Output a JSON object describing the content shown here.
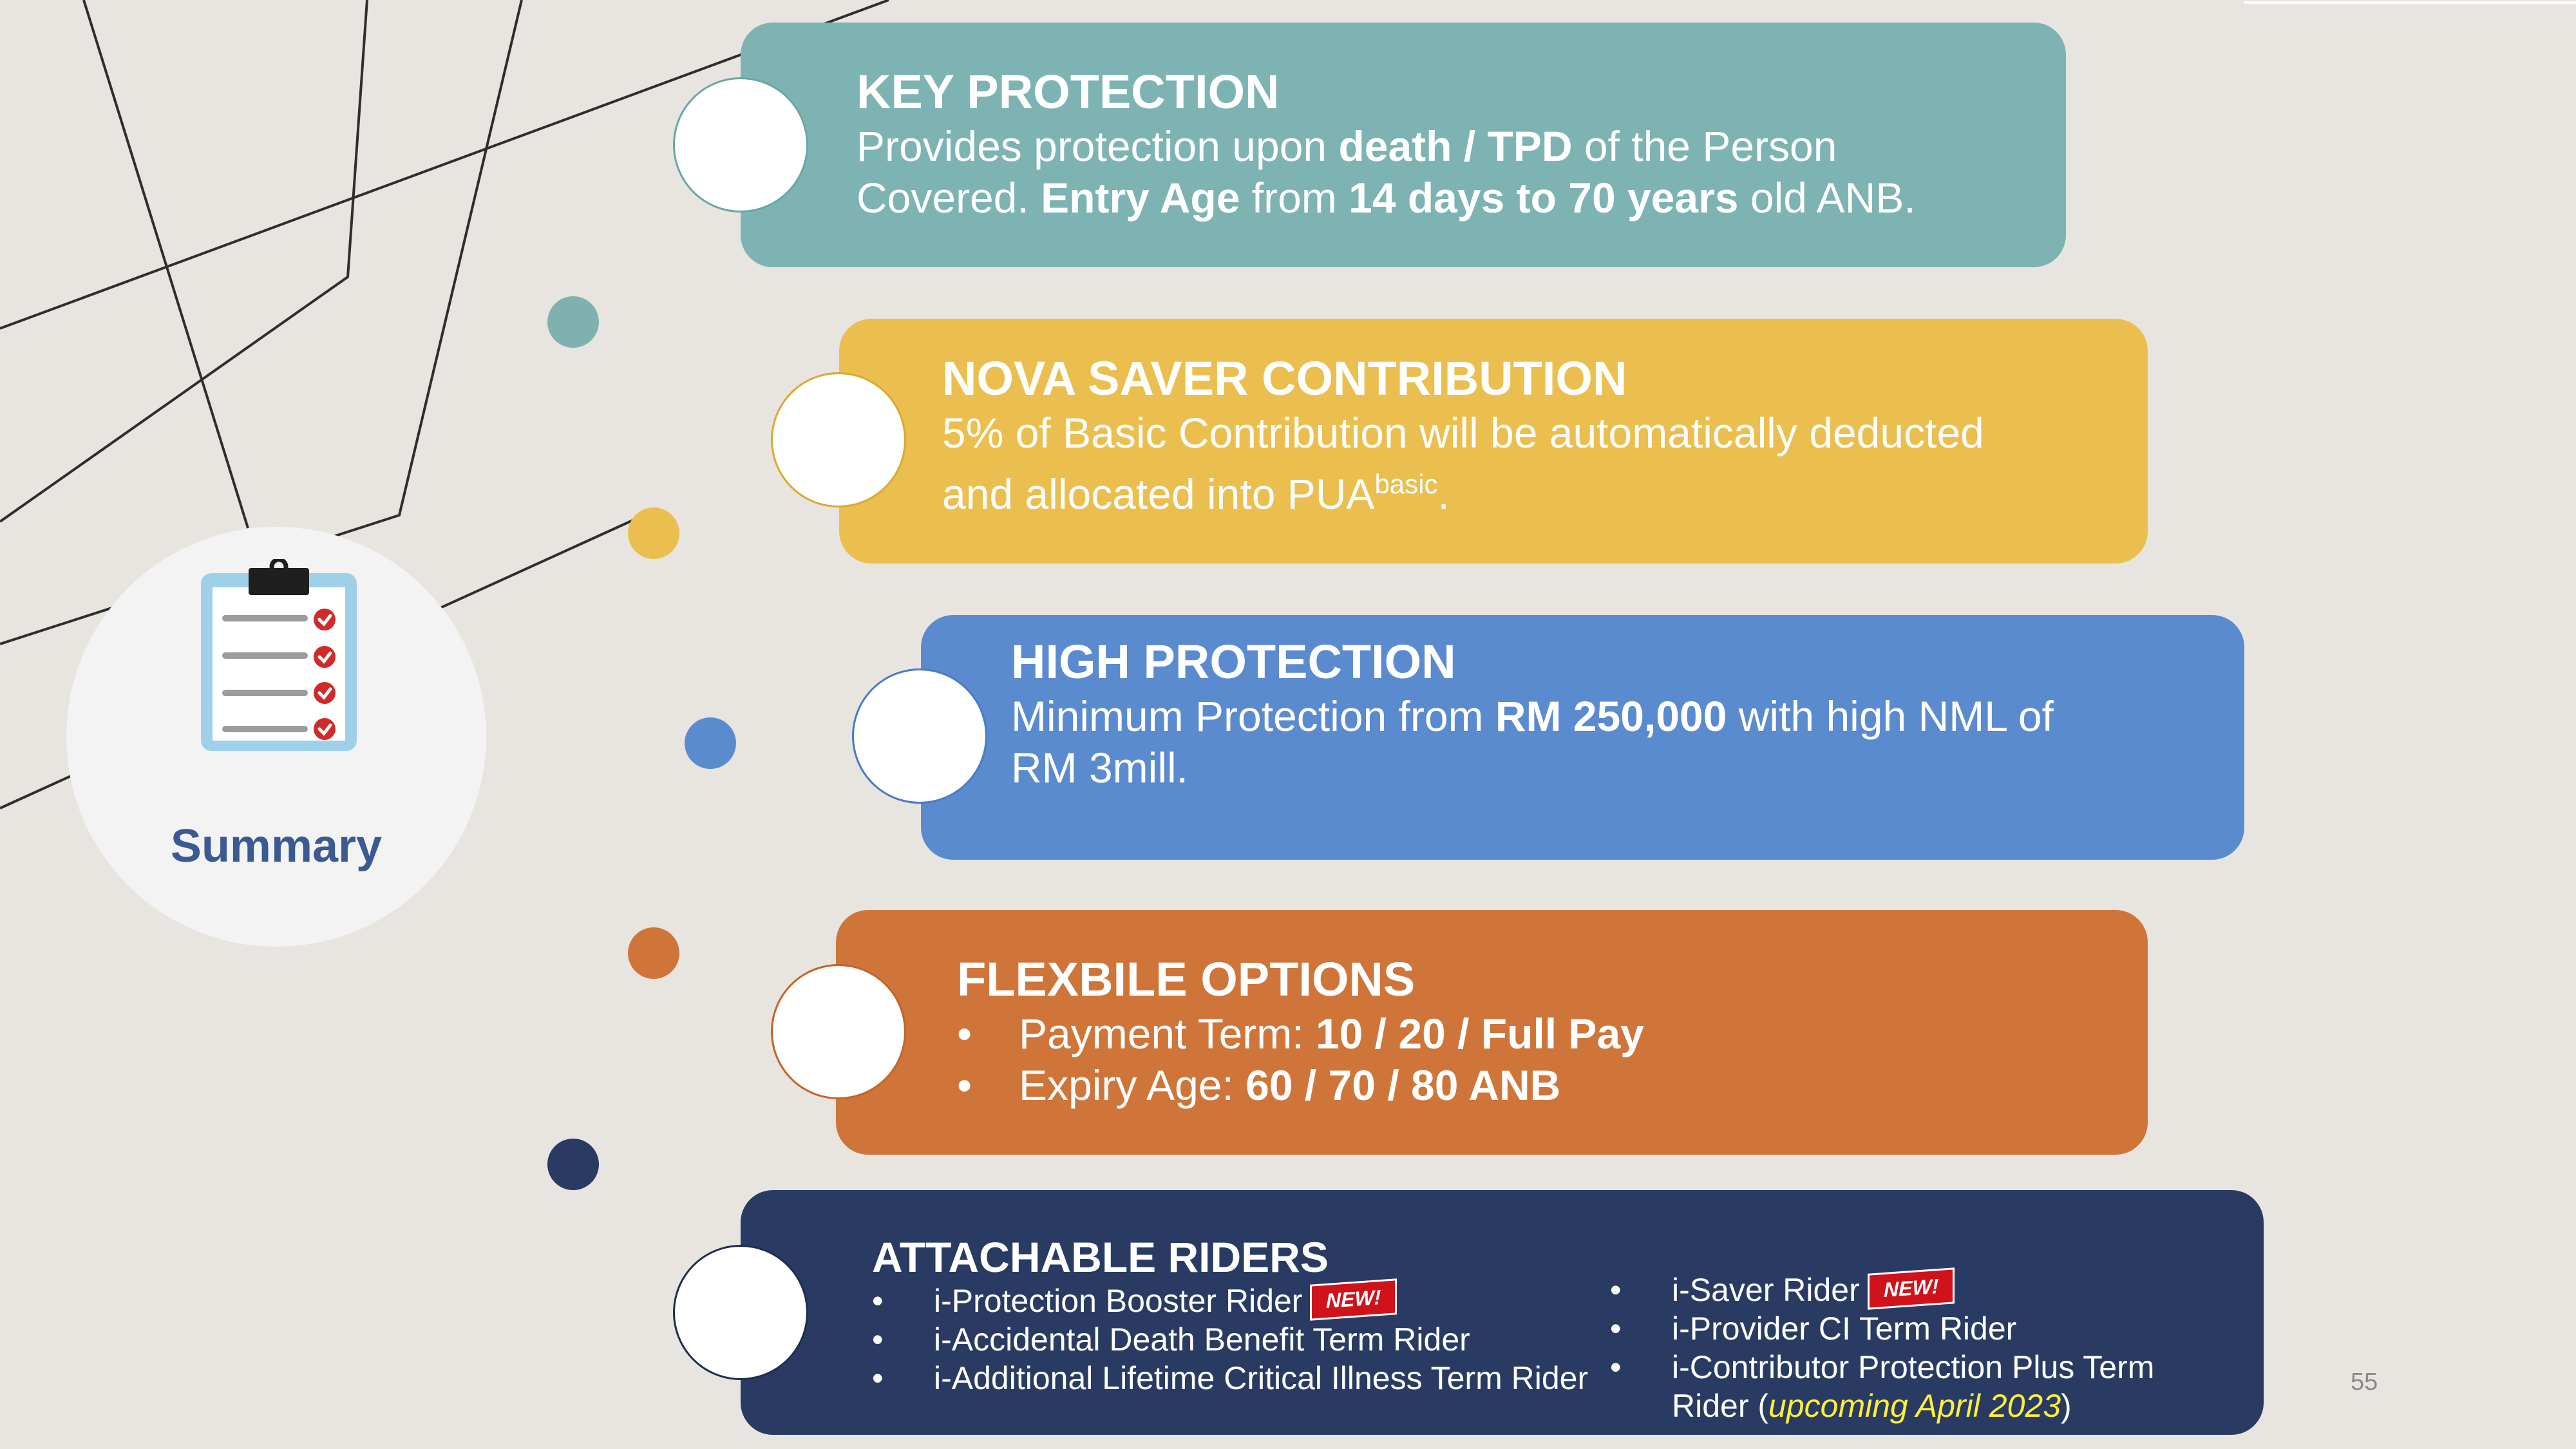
{
  "summary": {
    "label": "Summary"
  },
  "cards": [
    {
      "title": "KEY PROTECTION",
      "line1": [
        "Provides protection upon ",
        "death / TPD",
        " of the Person"
      ],
      "line2": [
        "Covered. ",
        "Entry Age",
        " from ",
        "14 days to 70 years",
        " old ANB."
      ],
      "color": "#7db3b3"
    },
    {
      "title": "NOVA SAVER CONTRIBUTION",
      "line1": "5% of Basic Contribution will be automatically deducted",
      "line2": {
        "text": "and allocated into PUA",
        "sup": "basic",
        "end": "."
      },
      "color": "#ebbf4f"
    },
    {
      "title": "HIGH PROTECTION",
      "line1": [
        "Minimum Protection from ",
        "RM 250,000",
        " with high NML of"
      ],
      "line2": "RM 3mill.",
      "color": "#5b8bcf"
    },
    {
      "title": "FLEXBILE OPTIONS",
      "bullets": [
        {
          "label": "Payment Term: ",
          "value": "10 / 20 / Full Pay"
        },
        {
          "label": "Expiry Age: ",
          "value": "60 / 70 / 80 ANB"
        }
      ],
      "color": "#cf753a"
    },
    {
      "title": "ATTACHABLE RIDERS",
      "left": [
        "i-Protection Booster Rider",
        "i-Accidental Death Benefit Term Rider",
        "i-Additional Lifetime Critical Illness Term Rider"
      ],
      "right": [
        "i-Saver Rider",
        "i-Provider CI Term Rider",
        "i-Contributor Protection Plus Term"
      ],
      "right_cont": {
        "text": "Rider ",
        "open": "(",
        "upcoming": "upcoming April 2023",
        "close": ")"
      },
      "new_badge": "NEW!",
      "color": "#293b63"
    }
  ],
  "bullet_char": "•",
  "page_number": "55",
  "colors": {
    "background": "#e8e5e0",
    "summary_text": "#3b5a91",
    "upcoming": "#ffef3a"
  },
  "icons": {
    "summary": "clipboard-checklist-icon"
  }
}
